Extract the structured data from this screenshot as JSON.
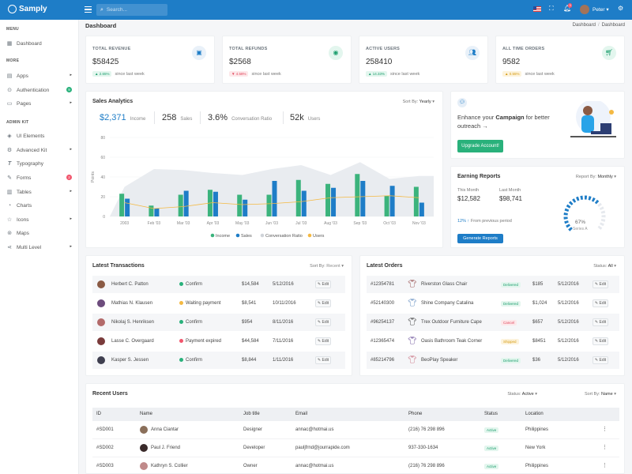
{
  "brand": "Samply",
  "topbar": {
    "search_placeholder": "Search...",
    "user": "Peter",
    "bell_count": "3"
  },
  "sidebar": {
    "sections": [
      {
        "title": "MENU"
      },
      {
        "title": "MORE"
      },
      {
        "title": "ADMIN KIT"
      }
    ],
    "items": [
      {
        "label": "Dashboard",
        "icon": "grid-icon"
      },
      {
        "label": "Apps",
        "icon": "apps-icon",
        "arrow": true
      },
      {
        "label": "Authentication",
        "icon": "lock-icon",
        "badge": "9",
        "badge_color": "#29b17b"
      },
      {
        "label": "Pages",
        "icon": "file-icon",
        "arrow": true
      },
      {
        "label": "UI Elements",
        "icon": "layers-icon"
      },
      {
        "label": "Advanced Kit",
        "icon": "cog-icon",
        "arrow": true
      },
      {
        "label": "Typography",
        "icon": "type-icon"
      },
      {
        "label": "Forms",
        "icon": "pen-icon",
        "badge": "2",
        "badge_color": "#f1556c"
      },
      {
        "label": "Tables",
        "icon": "table-icon",
        "arrow": true
      },
      {
        "label": "Charts",
        "icon": "chart-icon"
      },
      {
        "label": "Icons",
        "icon": "star-icon",
        "arrow": true
      },
      {
        "label": "Maps",
        "icon": "map-icon"
      },
      {
        "label": "Multi Level",
        "icon": "share-icon",
        "arrow": true
      }
    ]
  },
  "page": {
    "title": "Dashboard",
    "breadcrumb": [
      "Dashboard",
      "Dashboard"
    ]
  },
  "stats": [
    {
      "title": "TOTAL REVENUE",
      "value": "$58425",
      "change": "2.65%",
      "trend": "up",
      "note": "since last week",
      "icon": "money-icon"
    },
    {
      "title": "TOTAL REFUNDS",
      "value": "$2568",
      "change": "4.58%",
      "trend": "down",
      "note": "since last week",
      "icon": "refund-icon"
    },
    {
      "title": "ACTIVE USERS",
      "value": "258410",
      "change": "14.33%",
      "trend": "up",
      "note": "since last week",
      "icon": "users-icon"
    },
    {
      "title": "ALL TIME ORDERS",
      "value": "9582",
      "change": "0.55%",
      "trend": "warn",
      "note": "since last week",
      "icon": "cart-icon"
    }
  ],
  "sales": {
    "title": "Sales Analytics",
    "sort_label": "Sort By:",
    "sort_value": "Yearly",
    "kpis": [
      {
        "value": "$2,371",
        "label": "Income"
      },
      {
        "value": "258",
        "label": "Sales"
      },
      {
        "value": "3.6%",
        "label": "Conversation Ratio"
      },
      {
        "value": "52k",
        "label": "Users"
      }
    ],
    "ylabel": "Points",
    "legend": [
      "Income",
      "Sales",
      "Conversation Ratio",
      "Users"
    ]
  },
  "chart_data": {
    "type": "bar",
    "categories": [
      "2003",
      "Feb '03",
      "Mar '03",
      "Apr '03",
      "May '03",
      "Jun '03",
      "Jul '03",
      "Aug '03",
      "Sep '03",
      "Oct '03",
      "Nov '03"
    ],
    "ylim": [
      0,
      80
    ],
    "yticks": [
      0,
      20,
      40,
      60,
      80
    ],
    "ylabel": "Points",
    "series": [
      {
        "name": "Income",
        "type": "bar",
        "color": "#3bb37c",
        "values": [
          23,
          11,
          22,
          27,
          22,
          22,
          37,
          33,
          43,
          21,
          30
        ]
      },
      {
        "name": "Sales",
        "type": "bar",
        "color": "#1e7dc7",
        "values": [
          18,
          8,
          26,
          25,
          17,
          36,
          26,
          29,
          36,
          31,
          14
        ]
      },
      {
        "name": "Conversation Ratio",
        "type": "area",
        "color": "#e9ecf0",
        "values": [
          30,
          48,
          47,
          44,
          42,
          48,
          52,
          42,
          55,
          38,
          41
        ]
      },
      {
        "name": "Users",
        "type": "line",
        "color": "#f4b942",
        "values": [
          14,
          8,
          10,
          14,
          12,
          13,
          15,
          19,
          20,
          21,
          19
        ]
      }
    ]
  },
  "promo": {
    "text_pre": "Enhance your ",
    "text_bold": "Campaign",
    "text_post": " for better outreach →",
    "button": "Upgrade Account!"
  },
  "earning": {
    "title": "Earning Reports",
    "sort_label": "Report By:",
    "sort_value": "Monthly",
    "this_month_label": "This Month",
    "this_month": "$12,582",
    "last_month_label": "Last Month",
    "last_month": "$98,741",
    "growth": "12% ↑",
    "growth_note": "From previous period",
    "button": "Generate Reports",
    "gauge_value": "67%",
    "gauge_label": "Series A",
    "gauge_fraction": 0.67
  },
  "transactions": {
    "title": "Latest Transactions",
    "sort_label": "Sort By:",
    "sort_value": "Recent",
    "rows": [
      {
        "name": "Herbert C. Patton",
        "status": "Confirm",
        "status_color": "#29b17b",
        "amount": "$14,584",
        "date": "5/12/2016",
        "action": "Edit",
        "avatar": "#8a5a44"
      },
      {
        "name": "Mathias N. Klausen",
        "status": "Waiting payment",
        "status_color": "#f4b942",
        "amount": "$8,541",
        "date": "10/11/2016",
        "action": "Edit",
        "avatar": "#6d4c7d"
      },
      {
        "name": "Nikolaj S. Henriksen",
        "status": "Confirm",
        "status_color": "#29b17b",
        "amount": "$954",
        "date": "8/11/2016",
        "action": "Edit",
        "avatar": "#b36a6a"
      },
      {
        "name": "Lasse C. Overgaard",
        "status": "Payment expired",
        "status_color": "#f1556c",
        "amount": "$44,584",
        "date": "7/11/2016",
        "action": "Edit",
        "avatar": "#7a3b3b"
      },
      {
        "name": "Kasper S. Jessen",
        "status": "Confirm",
        "status_color": "#29b17b",
        "amount": "$8,844",
        "date": "1/11/2016",
        "action": "Edit",
        "avatar": "#3f3f4f"
      }
    ]
  },
  "orders": {
    "title": "Latest Orders",
    "sort_label": "Status:",
    "sort_value": "All",
    "rows": [
      {
        "id": "#12354781",
        "product": "Riverston Glass Chair",
        "status": "Delivered",
        "kind": "g",
        "amount": "$185",
        "date": "5/12/2016",
        "action": "Edit",
        "color": "#8b3a3a"
      },
      {
        "id": "#52140300",
        "product": "Shine Company Catalina",
        "status": "Delivered",
        "kind": "g",
        "amount": "$1,024",
        "date": "5/12/2016",
        "action": "Edit",
        "color": "#4f7fb8"
      },
      {
        "id": "#96254137",
        "product": "Trex Outdoor Furniture Cape",
        "status": "Cancel",
        "kind": "r",
        "amount": "$657",
        "date": "5/12/2016",
        "action": "Edit",
        "color": "#2b2b2b"
      },
      {
        "id": "#12365474",
        "product": "Oasis Bathroom Teak Corner",
        "status": "Shipped",
        "kind": "y",
        "amount": "$8451",
        "date": "5/12/2016",
        "action": "Edit",
        "color": "#5b3e8f"
      },
      {
        "id": "#85214796",
        "product": "BeoPlay Speaker",
        "status": "Delivered",
        "kind": "g",
        "amount": "$36",
        "date": "5/12/2016",
        "action": "Edit",
        "color": "#c76a7a"
      }
    ]
  },
  "recent_users": {
    "title": "Recent Users",
    "status_label": "Status:",
    "status_value": "Active",
    "sort_label": "Sort By:",
    "sort_value": "Name",
    "columns": [
      "ID",
      "Name",
      "Job title",
      "Email",
      "Phone",
      "Status",
      "Location"
    ],
    "rows": [
      {
        "id": "#SD001",
        "name": "Anna Ciantar",
        "job": "Designer",
        "email": "annac@hotmai.us",
        "phone": "(216) 76 298 896",
        "status": "Active",
        "location": "Philippines",
        "avatar": "#8a6f5a"
      },
      {
        "id": "#SD002",
        "name": "Paul J. Friend",
        "job": "Developer",
        "email": "pauljfrnd@jourrapide.com",
        "phone": "937-330-1634",
        "status": "Active",
        "location": "New York",
        "avatar": "#3a2a2a"
      },
      {
        "id": "#SD003",
        "name": "Kathryn S. Collier",
        "job": "Owner",
        "email": "annac@hotmai.us",
        "phone": "(216) 76 298 896",
        "status": "Active",
        "location": "Philippines",
        "avatar": "#c08a8a"
      }
    ]
  }
}
